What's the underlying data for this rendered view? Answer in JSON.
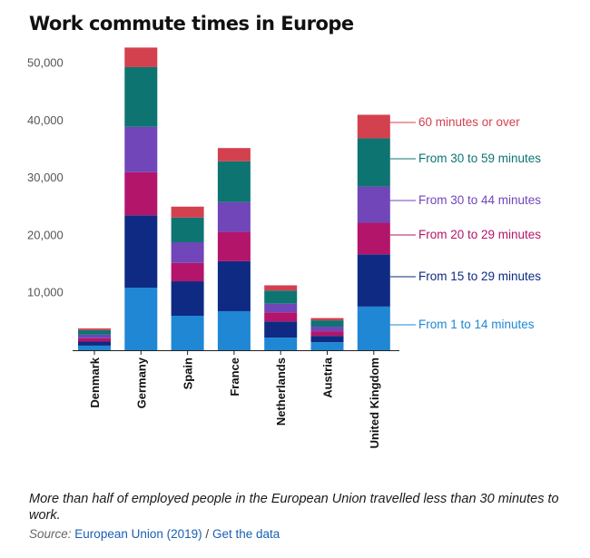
{
  "title": "Work commute times in Europe",
  "caption": "More than half of employed people in the European Union travelled less than 30 minutes to work.",
  "source": {
    "label": "Source:",
    "publisher_link": "European Union (2019)",
    "separator": "/",
    "data_link": "Get the data"
  },
  "chart_data": {
    "type": "bar",
    "stacked": true,
    "title": "Work commute times in Europe",
    "categories": [
      "Denmark",
      "Germany",
      "Spain",
      "France",
      "Netherlands",
      "Austria",
      "United Kingdom"
    ],
    "ylim": [
      0,
      52500
    ],
    "yticks": [
      10000,
      20000,
      30000,
      40000,
      50000
    ],
    "ytick_labels": [
      "10,000",
      "20,000",
      "30,000",
      "40,000",
      "50,000"
    ],
    "grid": false,
    "legend": "right, labels aligned to the last bar",
    "series": [
      {
        "name": "From 1 to 14 minutes",
        "color": "#1f87d3",
        "values": [
          800,
          10900,
          6000,
          6800,
          2200,
          1400,
          7600
        ]
      },
      {
        "name": "From 15 to 29 minutes",
        "color": "#0f2a82",
        "values": [
          700,
          12600,
          6000,
          8700,
          2800,
          1100,
          9100
        ]
      },
      {
        "name": "From 20 to 29 minutes",
        "color": "#b3156b",
        "values": [
          600,
          7500,
          3200,
          5100,
          1600,
          800,
          5500
        ]
      },
      {
        "name": "From 30 to 44 minutes",
        "color": "#7046b9",
        "values": [
          600,
          7900,
          3600,
          5200,
          1500,
          800,
          6300
        ]
      },
      {
        "name": "From 30 to 59 minutes",
        "color": "#0e7472",
        "values": [
          800,
          10400,
          4300,
          7100,
          2300,
          1100,
          8400
        ]
      },
      {
        "name": "60 minutes or over",
        "color": "#d3404e",
        "values": [
          300,
          3400,
          1900,
          2300,
          900,
          400,
          4100
        ]
      }
    ]
  }
}
